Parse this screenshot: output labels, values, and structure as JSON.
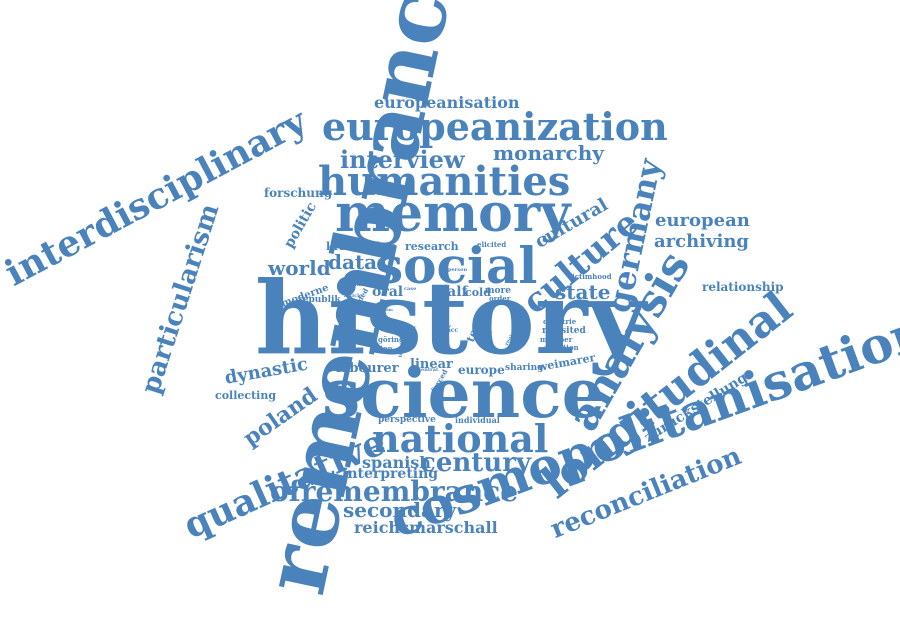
{
  "color": "#4a83bb",
  "words": {
    "history": "history",
    "remembrance": "remembrance",
    "cosmopolitanisation": "cosmopolitanisation",
    "science": "science",
    "memory": "memory",
    "humanities": "humanities",
    "europeanization": "europeanization",
    "interdisciplinary": "interdisciplinary",
    "longitudinal": "longitudinal",
    "analysis": "analysis",
    "social": "social",
    "national": "national",
    "qualitative": "qualitative",
    "ofremembrance": "ofremembrance",
    "particularism": "particularism",
    "germany": "germany",
    "culture": "culture",
    "reconciliation": "reconciliation",
    "century": "century",
    "interview": "interview",
    "monarchy": "monarchy",
    "europeanisation": "europeanisation",
    "european": "european",
    "archiving": "archiving",
    "cultural": "cultural",
    "world": "world",
    "data": "data",
    "state": "state",
    "poland": "poland",
    "dynastic": "dynastic",
    "secondary": "secondary",
    "reichsmarschall": "reichsmarschall",
    "spanish": "spanish",
    "interpreting": "interpreting",
    "relationship": "relationship",
    "zuruckstellung": "zurückstellung",
    "politic": "politic",
    "forschung": "forschung",
    "krisenjahre": "krisenjahre",
    "research": "research",
    "moderne": "moderne",
    "republik": "republik",
    "oral": "oral",
    "half": "half",
    "cold": "cold",
    "more": "more",
    "order": "order",
    "topic": "topic",
    "labourer": "labourer",
    "linear": "linear",
    "europe": "europe",
    "sharing": "sharing",
    "weimarer": "weimarer",
    "collecting": "collecting",
    "perspective": "perspective",
    "individual": "individual",
    "revisited": "revisited",
    "member": "member",
    "adoption": "adoption",
    "victimhood": "victimhood",
    "goring": "göring",
    "union": "union",
    "elicited": "elicited",
    "person": "person",
    "countrie": "countrie",
    "art": "art",
    "acc": "acc",
    "post": "post",
    "past": "past",
    "alter": "alter",
    "identity": "identity",
    "central": "central",
    "forced": "forced",
    "utter": "utter",
    "region": "region",
    "divided": "divided",
    "number": "number",
    "article": "article",
    "case": "case",
    "victim": "victim"
  }
}
